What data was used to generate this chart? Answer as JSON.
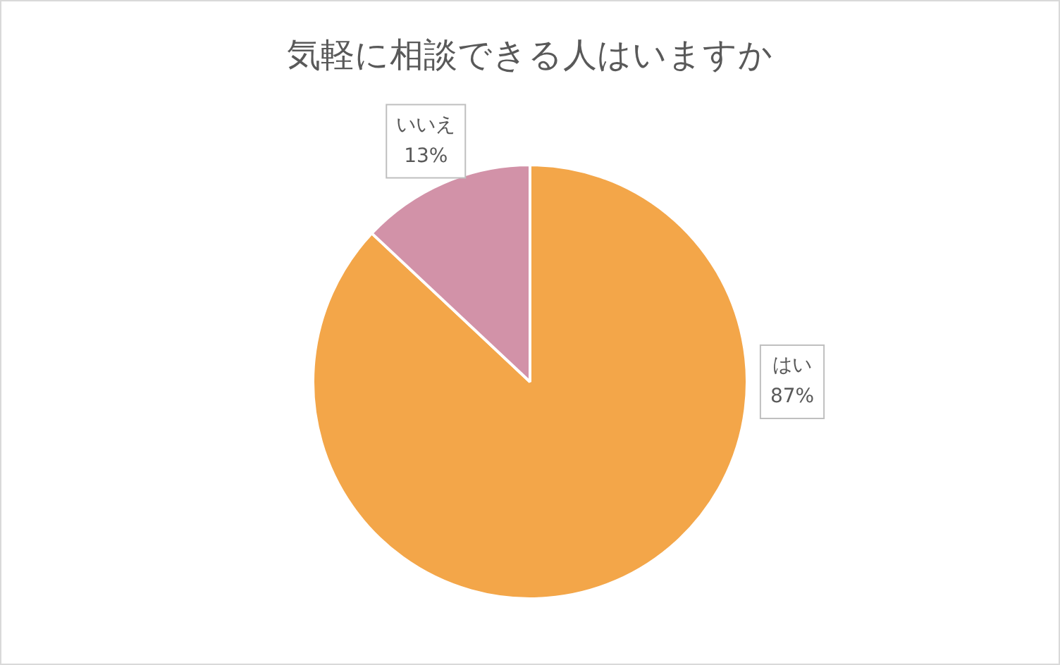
{
  "chart_data": {
    "type": "pie",
    "title": "気軽に相談できる人はいますか",
    "categories": [
      "はい",
      "いいえ"
    ],
    "values": [
      87,
      13
    ],
    "value_labels": [
      "87%",
      "13%"
    ],
    "colors": [
      "#f3a649",
      "#d292a8"
    ],
    "legend": false
  }
}
